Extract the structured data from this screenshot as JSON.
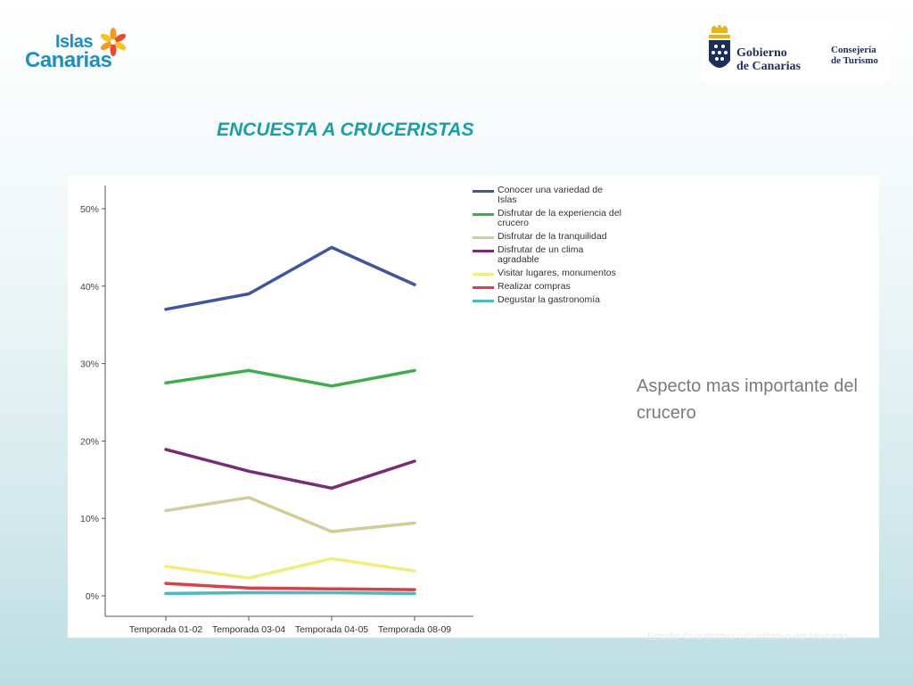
{
  "header": {
    "logo_left": {
      "line1": "Islas",
      "line2": "Canarias"
    },
    "logo_right": {
      "line1": "Gobierno",
      "line2": "de Canarias",
      "dept1": "Consejería",
      "dept2": "de Turismo"
    },
    "title": "ENCUESTA A CRUCERISTAS"
  },
  "chart_subtitle": "Aspecto mas importante del crucero",
  "source_note": "Estudio Cuantitativo y Cualitativo del Mercado",
  "chart_data": {
    "type": "line",
    "title": "",
    "xlabel": "",
    "ylabel": "",
    "ylim": [
      0,
      53
    ],
    "y_ticks": [
      "0%",
      "10%",
      "20%",
      "30%",
      "40%",
      "50%"
    ],
    "categories": [
      "Temporada 01-02",
      "Temporada 03-04",
      "Temporada 04-05",
      "Temporada 08-09"
    ],
    "legend_position": "top-right",
    "grid": false,
    "series": [
      {
        "name": "Conocer una variedad de Islas",
        "color": "#3d56a1",
        "values": [
          37.0,
          39.0,
          45.0,
          40.2
        ]
      },
      {
        "name": "Disfrutar de la experiencia del crucero",
        "color": "#3bb04a",
        "values": [
          27.5,
          29.1,
          27.1,
          29.1
        ]
      },
      {
        "name": "Disfrutar de la tranquilidad",
        "color": "#d2cd97",
        "values": [
          11.0,
          12.7,
          8.3,
          9.4
        ]
      },
      {
        "name": "Disfrutar de un clima agradable",
        "color": "#7a2b78",
        "values": [
          18.9,
          16.1,
          13.9,
          17.4
        ]
      },
      {
        "name": "Visitar lugares, monumentos",
        "color": "#f1ec7c",
        "values": [
          3.8,
          2.3,
          4.8,
          3.2
        ]
      },
      {
        "name": "Realizar compras",
        "color": "#e03d48",
        "values": [
          1.6,
          1.0,
          0.9,
          0.8
        ]
      },
      {
        "name": "Degustar la gastronomía",
        "color": "#45bcbd",
        "values": [
          0.3,
          0.4,
          0.4,
          0.3
        ]
      }
    ]
  }
}
